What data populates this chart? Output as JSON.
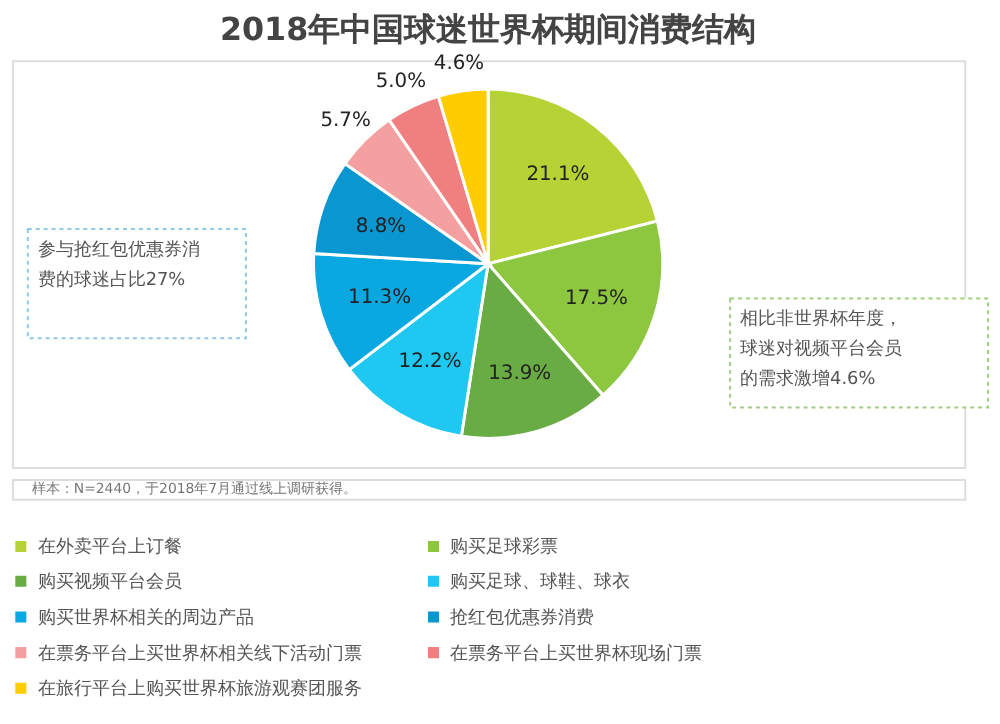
{
  "chart_data": {
    "type": "pie",
    "title": "2018年中国球迷世界杯期间消费结构",
    "categories": [
      "在外卖平台上订餐",
      "购买足球彩票",
      "购买视频平台会员",
      "购买足球、球鞋、球衣",
      "购买世界杯相关的周边产品",
      "抢红包优惠券消费",
      "在票务平台上买世界杯相关线下活动门票",
      "在票务平台上买世界杯现场门票",
      "在旅行平台上购买世界杯旅游观赛团服务"
    ],
    "values": [
      21.1,
      17.5,
      13.9,
      12.2,
      11.3,
      8.8,
      5.7,
      5.0,
      4.6
    ],
    "value_labels": [
      "21.1%",
      "17.5%",
      "13.9%",
      "12.2%",
      "11.3%",
      "8.8%",
      "5.7%",
      "5.0%",
      "4.6%"
    ],
    "colors": [
      "#b5d334",
      "#8dc63f",
      "#6aac44",
      "#1ec8f0",
      "#0aa8e0",
      "#0a96d0",
      "#f4a0a0",
      "#f08080",
      "#ffcc00"
    ],
    "legend": "bottom",
    "annotations": [
      "参与抢红包优惠券消费的球迷占比27%",
      "相比非世界杯年度，球迷对视频平台会员的需求激增4.6%",
      "样本：N=2440，于2018年7月通过线上调研获得。"
    ]
  }
}
